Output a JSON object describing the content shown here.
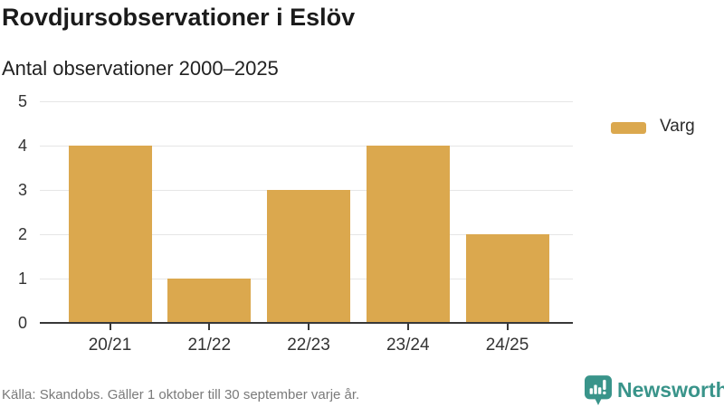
{
  "header": {
    "title": "Rovdjursobservationer i Eslöv",
    "subtitle": "Antal observationer 2000–2025"
  },
  "chart_data": {
    "type": "bar",
    "categories": [
      "20/21",
      "21/22",
      "22/23",
      "23/24",
      "24/25"
    ],
    "series": [
      {
        "name": "Varg",
        "values": [
          4,
          1,
          3,
          4,
          2
        ],
        "color": "#DBA84E"
      }
    ],
    "title": "Rovdjursobservationer i Eslöv",
    "subtitle": "Antal observationer 2000–2025",
    "xlabel": "",
    "ylabel": "",
    "ylim": [
      0,
      5
    ],
    "yticks": [
      0,
      1,
      2,
      3,
      4,
      5
    ],
    "grid": true,
    "legend_position": "right",
    "colors": {
      "bar": "#DBA84E",
      "gridline": "#e6e6e6",
      "axis_line": "#383838",
      "tick_text": "#333333"
    }
  },
  "legend": {
    "items": [
      {
        "label": "Varg",
        "color": "#DBA84E"
      }
    ]
  },
  "footer": {
    "source": "Källa: Skandobs. Gäller 1 oktober till 30 september varje år.",
    "brand": "Newsworthy",
    "brand_color": "#39948A"
  }
}
